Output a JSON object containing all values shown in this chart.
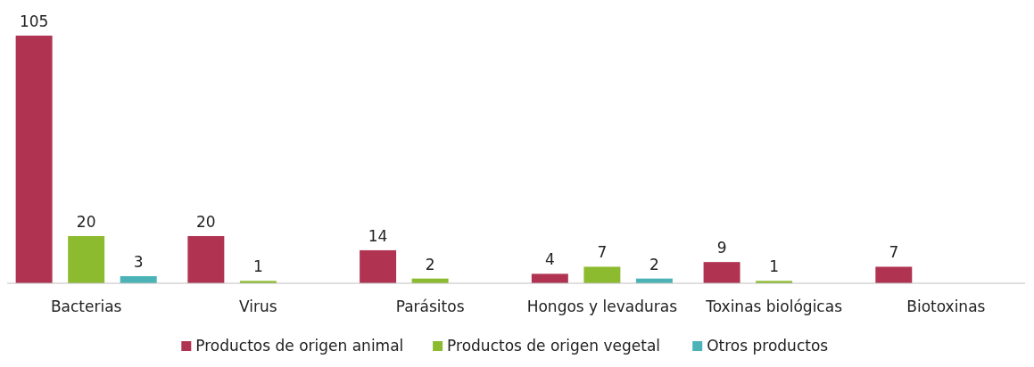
{
  "chart_data": {
    "type": "bar",
    "categories": [
      "Bacterias",
      "Virus",
      "Parásitos",
      "Hongos y levaduras",
      "Toxinas biológicas",
      "Biotoxinas"
    ],
    "series": [
      {
        "name": "Productos de origen animal",
        "color": "#b03452",
        "values": [
          105,
          20,
          14,
          4,
          9,
          7
        ]
      },
      {
        "name": "Productos de origen vegetal",
        "color": "#8dbb2f",
        "values": [
          20,
          1,
          2,
          7,
          1,
          null
        ]
      },
      {
        "name": "Otros productos",
        "color": "#4bb3b8",
        "values": [
          3,
          null,
          null,
          2,
          null,
          null
        ]
      }
    ],
    "data_labels": true,
    "legend": "bottom"
  }
}
